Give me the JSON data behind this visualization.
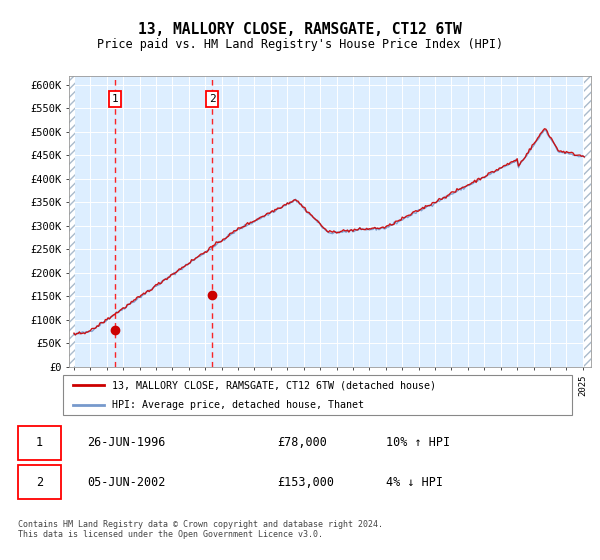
{
  "title": "13, MALLORY CLOSE, RAMSGATE, CT12 6TW",
  "subtitle": "Price paid vs. HM Land Registry's House Price Index (HPI)",
  "ylim": [
    0,
    620000
  ],
  "yticks": [
    0,
    50000,
    100000,
    150000,
    200000,
    250000,
    300000,
    350000,
    400000,
    450000,
    500000,
    550000,
    600000
  ],
  "ytick_labels": [
    "£0",
    "£50K",
    "£100K",
    "£150K",
    "£200K",
    "£250K",
    "£300K",
    "£350K",
    "£400K",
    "£450K",
    "£500K",
    "£550K",
    "£600K"
  ],
  "hpi_color": "#7799cc",
  "price_color": "#cc0000",
  "bg_color": "#ddeeff",
  "t1_year": 1996.5,
  "t1_price": 78000,
  "t2_year": 2002.42,
  "t2_price": 153000,
  "legend_line1": "13, MALLORY CLOSE, RAMSGATE, CT12 6TW (detached house)",
  "legend_line2": "HPI: Average price, detached house, Thanet",
  "footnote": "Contains HM Land Registry data © Crown copyright and database right 2024.\nThis data is licensed under the Open Government Licence v3.0.",
  "table_row1": [
    "1",
    "26-JUN-1996",
    "£78,000",
    "10% ↑ HPI"
  ],
  "table_row2": [
    "2",
    "05-JUN-2002",
    "£153,000",
    "4% ↓ HPI"
  ],
  "xmin": 1993.7,
  "xmax": 2025.5
}
